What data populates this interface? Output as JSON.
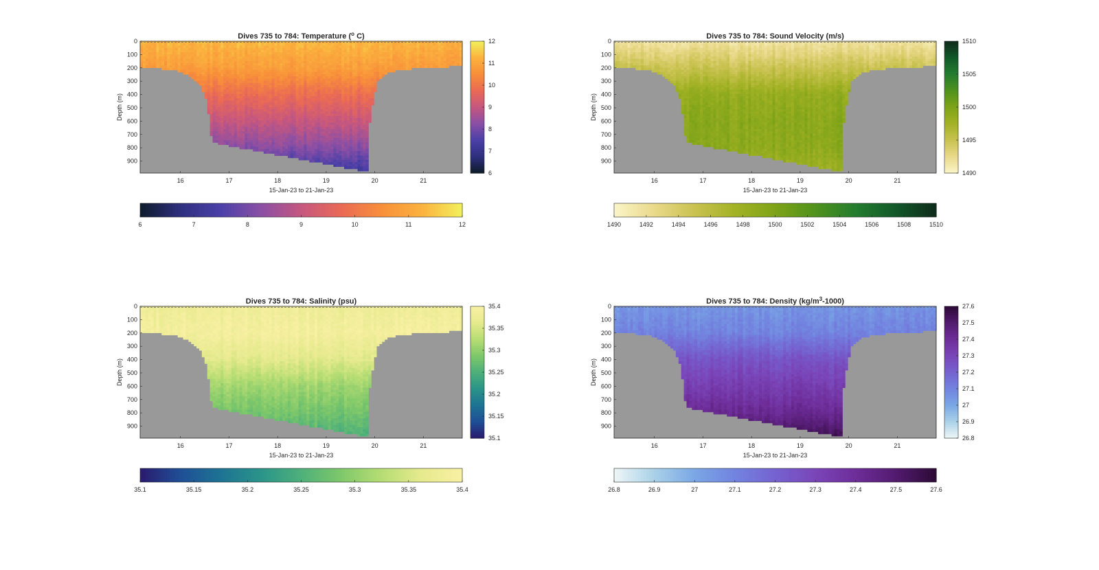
{
  "charts": [
    {
      "title": "Dives 735 to 784: Temperature (",
      "title_tail": " C)",
      "title_sup": "o",
      "cmap": [
        "#0d1b2a",
        "#2e2f7f",
        "#4b40a8",
        "#8a4fa5",
        "#c6577f",
        "#ea6a55",
        "#f88f3a",
        "#fbb23e",
        "#f2f15c"
      ],
      "sections": [
        {
          "x": 16.0,
          "top": [
            11.4,
            11.0
          ],
          "mid": [
            10.4,
            9.6
          ],
          "deep": [
            9.1,
            7.4
          ],
          "bottom": [
            7.0
          ]
        }
      ],
      "cb_range": [
        6,
        12
      ],
      "cb_ticks": [
        "6",
        "7",
        "8",
        "9",
        "10",
        "11",
        "12"
      ]
    },
    {
      "title": "Dives 735 to 784: Sound Velocity (m/s)",
      "cmap": [
        "#fbf5c8",
        "#e9d98a",
        "#c9c250",
        "#a3b225",
        "#7ea318",
        "#4f921c",
        "#237c2e",
        "#12592a",
        "#0e2a1a"
      ],
      "cb_range": [
        1490,
        1510
      ],
      "cb_ticks": [
        "1490",
        "1492",
        "1494",
        "1496",
        "1498",
        "1500",
        "1502",
        "1504",
        "1506",
        "1508",
        "1510"
      ],
      "vcb_ticks": [
        "1490",
        "1495",
        "1500",
        "1505",
        "1510"
      ]
    },
    {
      "title": "Dives 735 to 784: Salinity (psu)",
      "cmap": [
        "#2a1a6e",
        "#1f4f96",
        "#1d7393",
        "#2a9489",
        "#4eb07a",
        "#7fc86a",
        "#b7dd74",
        "#e6ea8e",
        "#f9f0a4"
      ],
      "cb_range": [
        35.1,
        35.4
      ],
      "cb_ticks": [
        "35.1",
        "35.15",
        "35.2",
        "35.25",
        "35.3",
        "35.35",
        "35.4"
      ]
    },
    {
      "title": "Dives 735 to 784: Density (kg/m",
      "title_sup": "3",
      "title_tail": "-1000)",
      "cmap": [
        "#eef6f6",
        "#a9d1e8",
        "#7aa7e6",
        "#7283df",
        "#7562d0",
        "#7a45b8",
        "#6e2d99",
        "#521b6f",
        "#2c0a35"
      ],
      "cb_range": [
        26.8,
        27.6
      ],
      "cb_ticks": [
        "26.8",
        "26.9",
        "27",
        "27.1",
        "27.2",
        "27.3",
        "27.4",
        "27.5",
        "27.6"
      ]
    }
  ],
  "common": {
    "ylabel": "Depth (m)",
    "xlabel": "15-Jan-23 to 21-Jan-23",
    "yticks": [
      "0",
      "100",
      "200",
      "300",
      "400",
      "500",
      "600",
      "700",
      "800",
      "900"
    ],
    "xticks": [
      "16",
      "17",
      "18",
      "19",
      "20",
      "21"
    ],
    "ylim": [
      0,
      990
    ],
    "xlim": [
      15.17,
      21.8
    ]
  },
  "chart_data": [
    {
      "type": "heatmap",
      "title": "Dives 735 to 784: Temperature (o C)",
      "xlabel": "15-Jan-23 to 21-Jan-23",
      "ylabel": "Depth (m)",
      "x_range": [
        15.17,
        21.8
      ],
      "y_range": [
        0,
        990
      ],
      "xticks": [
        16,
        17,
        18,
        19,
        20,
        21
      ],
      "yticks": [
        0,
        100,
        200,
        300,
        400,
        500,
        600,
        700,
        800,
        900
      ],
      "color_range": [
        6,
        12
      ],
      "seafloor_profile": {
        "x": [
          15.17,
          15.5,
          15.9,
          16.2,
          16.4,
          16.55,
          16.65,
          19.85,
          19.9,
          20.05,
          20.3,
          20.6,
          21.0,
          21.5,
          21.8
        ],
        "depth": [
          190,
          200,
          220,
          260,
          320,
          460,
          760,
          980,
          560,
          300,
          230,
          210,
          200,
          190,
          185
        ]
      },
      "profile": {
        "depth": [
          0,
          200,
          400,
          600,
          800,
          980
        ],
        "value": [
          11.3,
          10.8,
          9.8,
          9.0,
          8.2,
          7.2
        ]
      }
    },
    {
      "type": "heatmap",
      "title": "Dives 735 to 784: Sound Velocity (m/s)",
      "xlabel": "15-Jan-23 to 21-Jan-23",
      "ylabel": "Depth (m)",
      "x_range": [
        15.17,
        21.8
      ],
      "y_range": [
        0,
        990
      ],
      "color_range": [
        1490,
        1510
      ],
      "profile": {
        "depth": [
          0,
          200,
          400,
          600,
          800,
          980
        ],
        "value": [
          1491.5,
          1495,
          1498.5,
          1499.2,
          1499.0,
          1497.8
        ]
      }
    },
    {
      "type": "heatmap",
      "title": "Dives 735 to 784: Salinity (psu)",
      "xlabel": "15-Jan-23 to 21-Jan-23",
      "ylabel": "Depth (m)",
      "x_range": [
        15.17,
        21.8
      ],
      "y_range": [
        0,
        990
      ],
      "color_range": [
        35.1,
        35.4
      ],
      "profile": {
        "depth": [
          0,
          200,
          400,
          600,
          800,
          980
        ],
        "value": [
          35.38,
          35.39,
          35.36,
          35.31,
          35.28,
          35.25
        ]
      }
    },
    {
      "type": "heatmap",
      "title": "Dives 735 to 784: Density (kg/m3-1000)",
      "xlabel": "15-Jan-23 to 21-Jan-23",
      "ylabel": "Depth (m)",
      "x_range": [
        15.17,
        21.8
      ],
      "y_range": [
        0,
        990
      ],
      "color_range": [
        26.8,
        27.6
      ],
      "profile": {
        "depth": [
          0,
          200,
          400,
          600,
          800,
          980
        ],
        "value": [
          27.05,
          27.1,
          27.25,
          27.33,
          27.42,
          27.55
        ]
      }
    }
  ]
}
